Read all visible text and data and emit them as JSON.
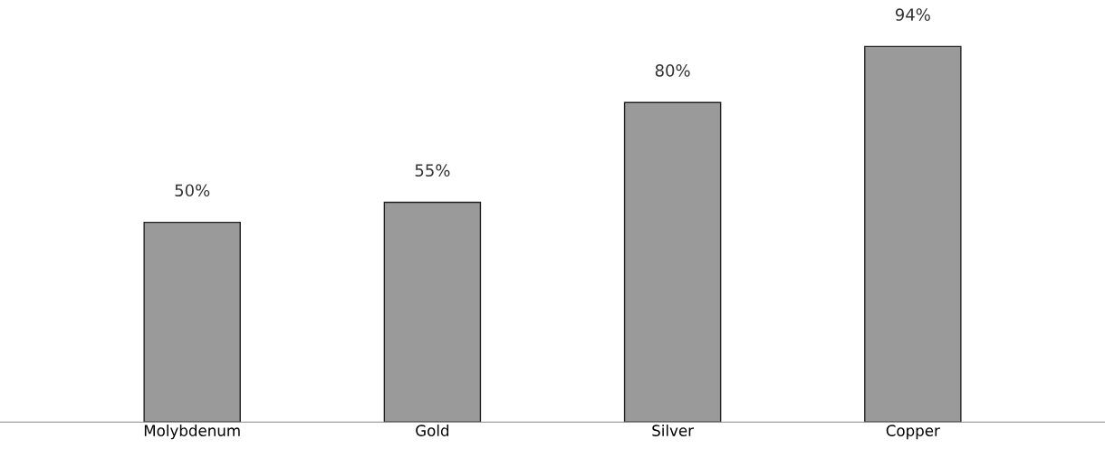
{
  "chart_data": {
    "type": "bar",
    "categories": [
      "Molybdenum",
      "Gold",
      "Silver",
      "Copper"
    ],
    "values": [
      50,
      55,
      80,
      94
    ],
    "value_labels": [
      "50%",
      "55%",
      "80%",
      "94%"
    ],
    "color": "#9a9a9a"
  }
}
